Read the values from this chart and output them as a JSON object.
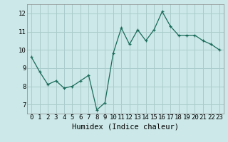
{
  "x": [
    0,
    1,
    2,
    3,
    4,
    5,
    6,
    7,
    8,
    9,
    10,
    11,
    12,
    13,
    14,
    15,
    16,
    17,
    18,
    19,
    20,
    21,
    22,
    23
  ],
  "y": [
    9.6,
    8.8,
    8.1,
    8.3,
    7.9,
    8.0,
    8.3,
    8.6,
    6.7,
    7.1,
    9.8,
    11.2,
    10.3,
    11.1,
    10.5,
    11.1,
    12.1,
    11.3,
    10.8,
    10.8,
    10.8,
    10.5,
    10.3,
    10.0
  ],
  "xlim": [
    -0.5,
    23.5
  ],
  "ylim": [
    6.5,
    12.5
  ],
  "yticks": [
    7,
    8,
    9,
    10,
    11,
    12
  ],
  "xticks": [
    0,
    1,
    2,
    3,
    4,
    5,
    6,
    7,
    8,
    9,
    10,
    11,
    12,
    13,
    14,
    15,
    16,
    17,
    18,
    19,
    20,
    21,
    22,
    23
  ],
  "xlabel": "Humidex (Indice chaleur)",
  "line_color": "#1a6b5a",
  "marker": "+",
  "marker_size": 3,
  "bg_color": "#cce8e8",
  "grid_color": "#aacccc",
  "tick_fontsize": 6.5,
  "label_fontsize": 7.5
}
